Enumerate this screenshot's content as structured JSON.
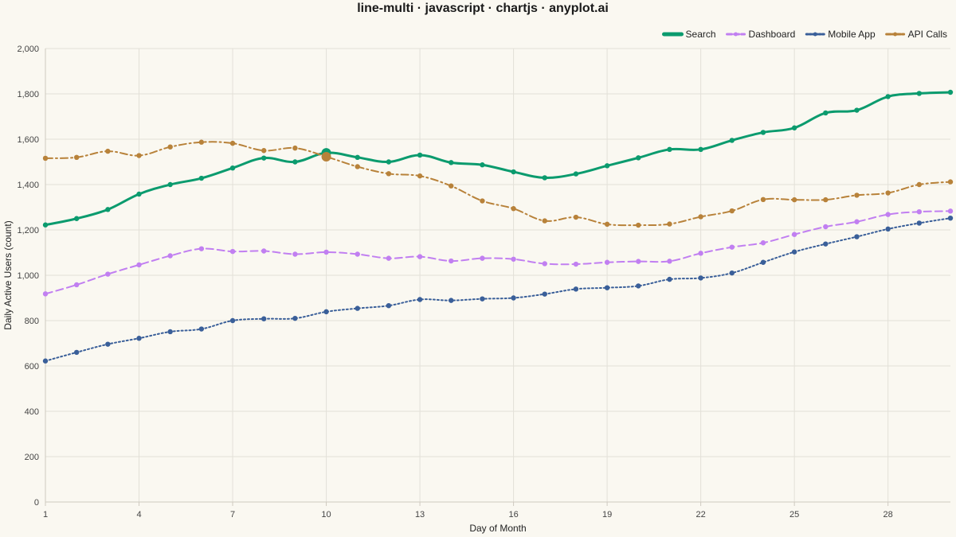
{
  "chart_data": {
    "type": "line",
    "title": "line-multi · javascript · chartjs · anyplot.ai",
    "xlabel": "Day of Month",
    "ylabel": "Daily Active Users (count)",
    "ylim": [
      0,
      2000
    ],
    "y_ticks": [
      "0",
      "200",
      "400",
      "600",
      "800",
      "1,000",
      "1,200",
      "1,400",
      "1,600",
      "1,800",
      "2,000"
    ],
    "x_ticks": [
      1,
      4,
      7,
      10,
      13,
      16,
      19,
      22,
      25,
      28
    ],
    "x": [
      1,
      2,
      3,
      4,
      5,
      6,
      7,
      8,
      9,
      10,
      11,
      12,
      13,
      14,
      15,
      16,
      17,
      18,
      19,
      20,
      21,
      22,
      23,
      24,
      25,
      26,
      27,
      28,
      29,
      30
    ],
    "grid": true,
    "legend_position": "top-right",
    "highlight_x": 10,
    "series": [
      {
        "name": "Search",
        "color": "#0b9b6e",
        "dash": "solid",
        "values": [
          1222,
          1250,
          1290,
          1358,
          1400,
          1428,
          1473,
          1517,
          1500,
          1540,
          1520,
          1500,
          1530,
          1497,
          1487,
          1456,
          1430,
          1447,
          1483,
          1518,
          1555,
          1555,
          1595,
          1630,
          1650,
          1716,
          1728,
          1788,
          1802,
          1807
        ]
      },
      {
        "name": "Dashboard",
        "color": "#c17ff1",
        "dash": "dashed",
        "values": [
          918,
          958,
          1005,
          1046,
          1086,
          1117,
          1105,
          1107,
          1093,
          1102,
          1093,
          1075,
          1082,
          1063,
          1075,
          1071,
          1051,
          1049,
          1057,
          1061,
          1062,
          1097,
          1124,
          1143,
          1180,
          1214,
          1236,
          1268,
          1280,
          1283
        ]
      },
      {
        "name": "Mobile App",
        "color": "#3a5f99",
        "dash": "dotted",
        "values": [
          622,
          660,
          696,
          722,
          751,
          763,
          800,
          808,
          810,
          839,
          854,
          866,
          893,
          889,
          896,
          900,
          917,
          939,
          945,
          953,
          982,
          988,
          1010,
          1057,
          1103,
          1138,
          1170,
          1204,
          1230,
          1252
        ]
      },
      {
        "name": "API Calls",
        "color": "#b8823a",
        "dash": "dashdot",
        "values": [
          1516,
          1520,
          1547,
          1528,
          1566,
          1587,
          1582,
          1550,
          1561,
          1523,
          1479,
          1448,
          1438,
          1394,
          1328,
          1294,
          1240,
          1256,
          1225,
          1221,
          1226,
          1258,
          1284,
          1334,
          1333,
          1333,
          1353,
          1363,
          1400,
          1412
        ]
      }
    ]
  }
}
